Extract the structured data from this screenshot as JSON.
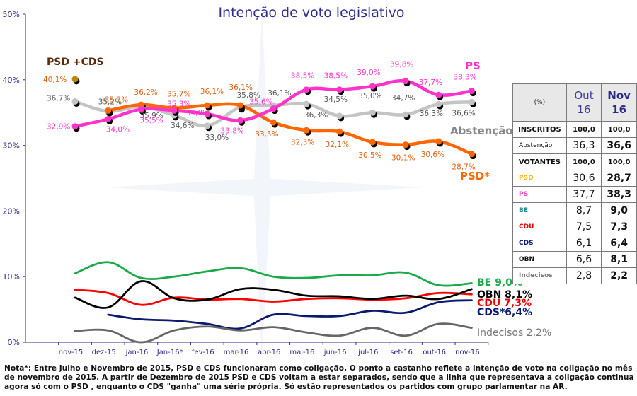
{
  "chart_data": {
    "type": "line",
    "title": "Intenção de voto legislativo",
    "xlabel": "",
    "ylabel": "",
    "ylim": [
      0,
      50
    ],
    "yticks": [
      "0%",
      "10%",
      "20%",
      "30%",
      "40%",
      "50%"
    ],
    "yticks_values": [
      0,
      10,
      20,
      30,
      40,
      50
    ],
    "categories": [
      "nov-15",
      "dez-15",
      "jan-16",
      "Jan-16*",
      "fev-16",
      "mar-16",
      "abr-16",
      "mai-16",
      "jun-16",
      "jul-16",
      "set-16",
      "out-16",
      "nov-16"
    ],
    "grid": false,
    "coalition_point": {
      "name": "PSD +CDS",
      "category": "nov-15",
      "value": 40.1,
      "label": "40,1%",
      "color": "#b8860b"
    },
    "series": [
      {
        "name": "Abstenção",
        "color": "#c4c4c4",
        "label_color": "#555555",
        "markers": true,
        "values": [
          36.7,
          35.2,
          35.9,
          34.6,
          33.0,
          35.8,
          36.1,
          36.3,
          34.5,
          35.0,
          34.7,
          36.3,
          36.6
        ],
        "labels": [
          "36,7%",
          "35,2%",
          "35,9%",
          "34,6%",
          "33,0%",
          "35,8%",
          "36,1%",
          "36,3%",
          "34,5%",
          "35,0%",
          "34,7%",
          "36,3%",
          "36,6%"
        ],
        "end_label": "Abstenção"
      },
      {
        "name": "PSD*",
        "color": "#ff6600",
        "label_color": "#e06010",
        "markers": true,
        "values": [
          null,
          35.3,
          36.2,
          35.7,
          36.1,
          36.1,
          33.5,
          32.3,
          32.1,
          30.5,
          30.1,
          30.6,
          28.7
        ],
        "labels": [
          null,
          "35,3%",
          "36,2%",
          "35,7%",
          "36,1%",
          "36,1%",
          "33,5%",
          "32,3%",
          "32,1%",
          "30,5%",
          "30,1%",
          "30,6%",
          "28,7%"
        ],
        "end_label": "PSD*"
      },
      {
        "name": "PS",
        "color": "#ff33cc",
        "label_color": "#ff33cc",
        "markers": true,
        "values": [
          32.9,
          34.0,
          35.5,
          35.3,
          34.8,
          33.8,
          35.6,
          38.5,
          38.5,
          39.0,
          39.8,
          37.7,
          38.3
        ],
        "labels": [
          "32,9%",
          "34,0%",
          "35,5%",
          "35,3%",
          "34,8%",
          "33,8%",
          "35,6%",
          "38,5%",
          "38,5%",
          "39,0%",
          "39,8%",
          "37,7%",
          "38,3%"
        ],
        "end_label": "PS"
      },
      {
        "name": "BE",
        "color": "#1aaa4a",
        "markers": false,
        "values": [
          10.5,
          12.2,
          9.8,
          10.0,
          10.8,
          11.3,
          10.0,
          9.8,
          10.2,
          10.2,
          10.6,
          8.7,
          9.0
        ],
        "end_label": "BE 9,0%"
      },
      {
        "name": "CDU",
        "color": "#ff0000",
        "markers": false,
        "values": [
          8.0,
          7.5,
          5.7,
          6.8,
          6.5,
          6.6,
          6.2,
          6.6,
          6.7,
          6.5,
          6.7,
          7.5,
          7.3
        ],
        "end_label": "CDU 7,3%"
      },
      {
        "name": "OBN",
        "color": "#000000",
        "markers": false,
        "values": [
          6.8,
          5.3,
          9.3,
          6.7,
          6.5,
          8.1,
          8.0,
          7.1,
          7.0,
          6.6,
          7.1,
          6.6,
          8.1
        ],
        "end_label": "OBN 8,1%"
      },
      {
        "name": "CDS*",
        "color": "#0a1a6e",
        "markers": false,
        "values": [
          null,
          4.2,
          3.5,
          3.3,
          2.8,
          2.1,
          4.2,
          4.0,
          4.0,
          4.8,
          4.5,
          6.1,
          6.4
        ],
        "end_label": "CDS*6,4%"
      },
      {
        "name": "Indecisos",
        "color": "#666666",
        "markers": false,
        "values": [
          1.7,
          1.8,
          0.0,
          1.8,
          2.4,
          1.8,
          2.3,
          1.5,
          1.0,
          2.2,
          1.0,
          2.8,
          2.2
        ],
        "end_label": "Indecisos 2,2%"
      }
    ],
    "legend": "inline-end-labels"
  },
  "table": {
    "header": {
      "corner": "(%)",
      "col1": [
        "Out",
        "16"
      ],
      "col2": [
        "Nov",
        "16"
      ]
    },
    "rows": [
      {
        "label": "INSCRITOS",
        "out": "100,0",
        "nov": "100,0",
        "color": "#111111",
        "bold_row": true
      },
      {
        "label": "Abstenção",
        "out": "36,3",
        "nov": "36,6",
        "color": "#111111",
        "bold_row": false
      },
      {
        "label": "VOTANTES",
        "out": "100,0",
        "nov": "100,0",
        "color": "#111111",
        "bold_row": true
      },
      {
        "label": "PSD",
        "out": "30,6",
        "nov": "28,7",
        "color": "#ffb400",
        "bold_row": false
      },
      {
        "label": "PS",
        "out": "37,7",
        "nov": "38,3",
        "color": "#ff33cc",
        "bold_row": false
      },
      {
        "label": "BE",
        "out": "8,7",
        "nov": "9,0",
        "color": "#1a8a8a",
        "bold_row": false
      },
      {
        "label": "CDU",
        "out": "7,5",
        "nov": "7,3",
        "color": "#ee0000",
        "bold_row": false
      },
      {
        "label": "CDS",
        "out": "6,1",
        "nov": "6,4",
        "color": "#0a1a6e",
        "bold_row": false
      },
      {
        "label": "OBN",
        "out": "6,6",
        "nov": "8,1",
        "color": "#111111",
        "bold_row": false
      },
      {
        "label": "Indecisos",
        "out": "2,8",
        "nov": "2,2",
        "color": "#777777",
        "bold_row": false
      }
    ]
  },
  "note": "Nota*: Entre Julho e Novembro de 2015, PSD e CDS funcionaram como coligação. O ponto a castanho reflete a intenção de voto na coligação no mês de novembro de 2015. A partir de Dezembro de 2015 PSD e CDS voltam a estar separados, sendo que a linha que representava a coligação continua agora só com o PSD , enquanto o CDS \"ganha\" uma série própria. Só estão representados os partidos com grupo parlamentar na AR."
}
